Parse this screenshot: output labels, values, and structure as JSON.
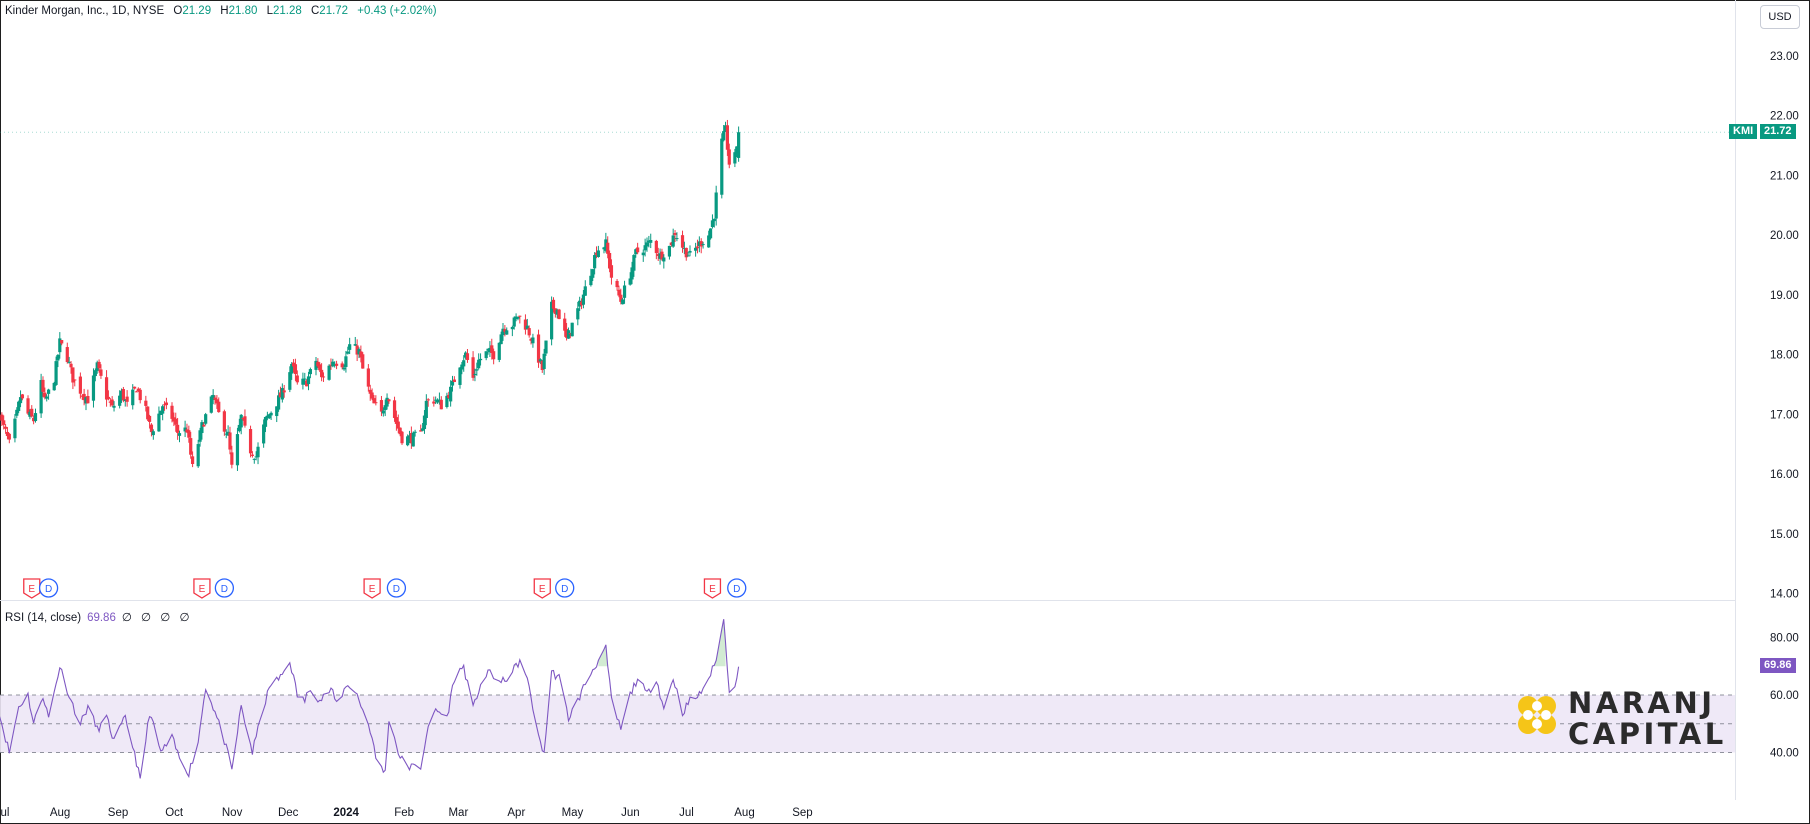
{
  "header": {
    "symbol_name": "Kinder Morgan, Inc., 1D, NYSE",
    "open_label": "O",
    "open": "21.29",
    "high_label": "H",
    "high": "21.80",
    "low_label": "L",
    "low": "21.28",
    "close_label": "C",
    "close": "21.72",
    "change": "+0.43 (+2.02%)"
  },
  "currency_button": "USD",
  "price_tag": {
    "ticker": "KMI",
    "value": "21.72"
  },
  "rsi": {
    "title": "RSI (14, close)",
    "value": "69.86",
    "placeholders": "∅ ∅ ∅ ∅",
    "tag": "69.86"
  },
  "logo": {
    "line1": "NARANJ",
    "line2": "CAPITAL"
  },
  "colors": {
    "up": "#089981",
    "down": "#f23645",
    "rsi_line": "#7e57c2",
    "rsi_band": "#ede7f6",
    "earnings": "#f23645",
    "dividend": "#2962ff",
    "logo_gold": "#f5c518"
  },
  "chart_data": [
    {
      "type": "candlestick",
      "title": "Kinder Morgan, Inc., 1D, NYSE",
      "currency": "USD",
      "y_axis": {
        "ticks": [
          "14.00",
          "15.00",
          "16.00",
          "17.00",
          "18.00",
          "19.00",
          "20.00",
          "21.00",
          "22.00",
          "23.00"
        ],
        "range": [
          13.9,
          23.2
        ]
      },
      "x_axis": {
        "labels": [
          "Jul",
          "Aug",
          "Sep",
          "Oct",
          "Nov",
          "Dec",
          "2024",
          "Feb",
          "Mar",
          "Apr",
          "May",
          "Jun",
          "Jul",
          "Aug",
          "Sep"
        ]
      },
      "last_close": 21.72,
      "anchors": [
        [
          "2023-06-30",
          17.08
        ],
        [
          "2023-07-05",
          16.7
        ],
        [
          "2023-07-07",
          16.5
        ],
        [
          "2023-07-10",
          16.85
        ],
        [
          "2023-07-13",
          17.3
        ],
        [
          "2023-07-17",
          17.0
        ],
        [
          "2023-07-20",
          16.9
        ],
        [
          "2023-07-24",
          17.5
        ],
        [
          "2023-07-26",
          17.2
        ],
        [
          "2023-07-31",
          17.6
        ],
        [
          "2023-08-03",
          18.2
        ],
        [
          "2023-08-07",
          17.95
        ],
        [
          "2023-08-10",
          17.6
        ],
        [
          "2023-08-15",
          17.35
        ],
        [
          "2023-08-18",
          17.25
        ],
        [
          "2023-08-23",
          17.8
        ],
        [
          "2023-08-28",
          17.3
        ],
        [
          "2023-08-31",
          17.1
        ],
        [
          "2023-09-05",
          17.35
        ],
        [
          "2023-09-08",
          17.15
        ],
        [
          "2023-09-13",
          17.45
        ],
        [
          "2023-09-18",
          17.05
        ],
        [
          "2023-09-21",
          16.7
        ],
        [
          "2023-09-27",
          17.15
        ],
        [
          "2023-10-02",
          16.95
        ],
        [
          "2023-10-05",
          16.7
        ],
        [
          "2023-10-10",
          16.75
        ],
        [
          "2023-10-13",
          16.1
        ],
        [
          "2023-10-18",
          16.8
        ],
        [
          "2023-10-24",
          17.3
        ],
        [
          "2023-10-27",
          17.0
        ],
        [
          "2023-11-01",
          16.65
        ],
        [
          "2023-11-03",
          16.1
        ],
        [
          "2023-11-08",
          16.95
        ],
        [
          "2023-11-13",
          16.4
        ],
        [
          "2023-11-16",
          16.3
        ],
        [
          "2023-11-21",
          16.9
        ],
        [
          "2023-11-27",
          17.2
        ],
        [
          "2023-11-30",
          17.35
        ],
        [
          "2023-12-05",
          17.85
        ],
        [
          "2023-12-08",
          17.5
        ],
        [
          "2023-12-13",
          17.55
        ],
        [
          "2023-12-18",
          17.9
        ],
        [
          "2023-12-21",
          17.6
        ],
        [
          "2023-12-27",
          17.9
        ],
        [
          "2024-01-02",
          17.85
        ],
        [
          "2024-01-05",
          18.15
        ],
        [
          "2024-01-10",
          18.05
        ],
        [
          "2024-01-12",
          17.75
        ],
        [
          "2024-01-17",
          17.2
        ],
        [
          "2024-01-22",
          17.0
        ],
        [
          "2024-01-25",
          17.35
        ],
        [
          "2024-01-30",
          16.85
        ],
        [
          "2024-02-02",
          16.6
        ],
        [
          "2024-02-07",
          16.6
        ],
        [
          "2024-02-12",
          16.65
        ],
        [
          "2024-02-15",
          17.2
        ],
        [
          "2024-02-20",
          17.25
        ],
        [
          "2024-02-23",
          17.15
        ],
        [
          "2024-02-28",
          17.4
        ],
        [
          "2024-03-04",
          17.85
        ],
        [
          "2024-03-07",
          18.0
        ],
        [
          "2024-03-11",
          17.6
        ],
        [
          "2024-03-14",
          17.9
        ],
        [
          "2024-03-19",
          18.05
        ],
        [
          "2024-03-22",
          18.0
        ],
        [
          "2024-03-27",
          18.45
        ],
        [
          "2024-04-01",
          18.5
        ],
        [
          "2024-04-04",
          18.65
        ],
        [
          "2024-04-09",
          18.45
        ],
        [
          "2024-04-12",
          18.2
        ],
        [
          "2024-04-17",
          17.75
        ],
        [
          "2024-04-22",
          18.8
        ],
        [
          "2024-04-25",
          18.75
        ],
        [
          "2024-04-30",
          18.25
        ],
        [
          "2024-05-03",
          18.5
        ],
        [
          "2024-05-08",
          18.9
        ],
        [
          "2024-05-13",
          19.4
        ],
        [
          "2024-05-16",
          19.75
        ],
        [
          "2024-05-21",
          19.85
        ],
        [
          "2024-05-24",
          19.3
        ],
        [
          "2024-05-29",
          18.9
        ],
        [
          "2024-06-03",
          19.35
        ],
        [
          "2024-06-06",
          19.7
        ],
        [
          "2024-06-11",
          19.8
        ],
        [
          "2024-06-14",
          19.9
        ],
        [
          "2024-06-19",
          19.65
        ],
        [
          "2024-06-24",
          19.8
        ],
        [
          "2024-06-27",
          20.05
        ],
        [
          "2024-07-02",
          19.75
        ],
        [
          "2024-07-05",
          19.65
        ],
        [
          "2024-07-10",
          19.85
        ],
        [
          "2024-07-15",
          20.0
        ],
        [
          "2024-07-18",
          20.35
        ],
        [
          "2024-07-22",
          21.55
        ],
        [
          "2024-07-24",
          21.75
        ],
        [
          "2024-07-26",
          21.2
        ],
        [
          "2024-07-29",
          21.3
        ],
        [
          "2024-07-31",
          21.72
        ]
      ]
    },
    {
      "type": "line",
      "title": "RSI (14, close)",
      "y_axis": {
        "ticks": [
          "40.00",
          "60.00",
          "80.00"
        ],
        "range": [
          24,
          95
        ]
      },
      "band": [
        40,
        60
      ],
      "midline": 50,
      "last_value": 69.86,
      "anchors": [
        [
          "2023-06-30",
          58
        ],
        [
          "2023-07-03",
          50
        ],
        [
          "2023-07-07",
          40
        ],
        [
          "2023-07-12",
          56
        ],
        [
          "2023-07-17",
          60
        ],
        [
          "2023-07-20",
          50
        ],
        [
          "2023-07-25",
          60
        ],
        [
          "2023-07-28",
          52
        ],
        [
          "2023-08-03",
          70
        ],
        [
          "2023-08-09",
          58
        ],
        [
          "2023-08-14",
          50
        ],
        [
          "2023-08-18",
          56
        ],
        [
          "2023-08-23",
          48
        ],
        [
          "2023-08-28",
          52
        ],
        [
          "2023-09-01",
          44
        ],
        [
          "2023-09-07",
          52
        ],
        [
          "2023-09-12",
          40
        ],
        [
          "2023-09-15",
          30
        ],
        [
          "2023-09-20",
          54
        ],
        [
          "2023-09-26",
          40
        ],
        [
          "2023-10-02",
          45
        ],
        [
          "2023-10-06",
          38
        ],
        [
          "2023-10-11",
          33
        ],
        [
          "2023-10-16",
          44
        ],
        [
          "2023-10-20",
          63
        ],
        [
          "2023-10-25",
          54
        ],
        [
          "2023-10-30",
          44
        ],
        [
          "2023-11-03",
          34
        ],
        [
          "2023-11-08",
          56
        ],
        [
          "2023-11-14",
          40
        ],
        [
          "2023-11-20",
          56
        ],
        [
          "2023-11-24",
          64
        ],
        [
          "2023-11-29",
          66
        ],
        [
          "2023-12-04",
          72
        ],
        [
          "2023-12-08",
          60
        ],
        [
          "2023-12-12",
          58
        ],
        [
          "2023-12-15",
          63
        ],
        [
          "2023-12-20",
          58
        ],
        [
          "2023-12-26",
          62
        ],
        [
          "2023-12-29",
          57
        ],
        [
          "2024-01-04",
          64
        ],
        [
          "2024-01-09",
          60
        ],
        [
          "2024-01-16",
          48
        ],
        [
          "2024-01-19",
          38
        ],
        [
          "2024-01-24",
          33
        ],
        [
          "2024-01-26",
          52
        ],
        [
          "2024-02-01",
          38
        ],
        [
          "2024-02-06",
          35
        ],
        [
          "2024-02-12",
          35
        ],
        [
          "2024-02-15",
          46
        ],
        [
          "2024-02-20",
          55
        ],
        [
          "2024-02-26",
          52
        ],
        [
          "2024-03-01",
          66
        ],
        [
          "2024-03-06",
          70
        ],
        [
          "2024-03-11",
          55
        ],
        [
          "2024-03-15",
          64
        ],
        [
          "2024-03-20",
          68
        ],
        [
          "2024-03-26",
          64
        ],
        [
          "2024-04-01",
          68
        ],
        [
          "2024-04-05",
          72
        ],
        [
          "2024-04-10",
          63
        ],
        [
          "2024-04-15",
          45
        ],
        [
          "2024-04-18",
          40
        ],
        [
          "2024-04-22",
          68
        ],
        [
          "2024-04-26",
          66
        ],
        [
          "2024-05-01",
          52
        ],
        [
          "2024-05-06",
          58
        ],
        [
          "2024-05-10",
          64
        ],
        [
          "2024-05-15",
          70
        ],
        [
          "2024-05-21",
          76
        ],
        [
          "2024-05-24",
          58
        ],
        [
          "2024-05-29",
          48
        ],
        [
          "2024-06-03",
          60
        ],
        [
          "2024-06-07",
          66
        ],
        [
          "2024-06-12",
          60
        ],
        [
          "2024-06-17",
          66
        ],
        [
          "2024-06-21",
          55
        ],
        [
          "2024-06-26",
          66
        ],
        [
          "2024-07-01",
          54
        ],
        [
          "2024-07-05",
          58
        ],
        [
          "2024-07-10",
          60
        ],
        [
          "2024-07-15",
          66
        ],
        [
          "2024-07-18",
          70
        ],
        [
          "2024-07-23",
          86
        ],
        [
          "2024-07-26",
          62
        ],
        [
          "2024-07-29",
          64
        ],
        [
          "2024-07-31",
          69.86
        ]
      ]
    }
  ],
  "events": {
    "earnings_label": "E",
    "dividend_label": "D",
    "earnings_dates": [
      "2023-07-19",
      "2023-10-18",
      "2024-01-17",
      "2024-04-17",
      "2024-07-17"
    ],
    "dividend_dates": [
      "2023-07-28",
      "2023-10-30",
      "2024-01-30",
      "2024-04-29",
      "2024-07-30"
    ]
  }
}
